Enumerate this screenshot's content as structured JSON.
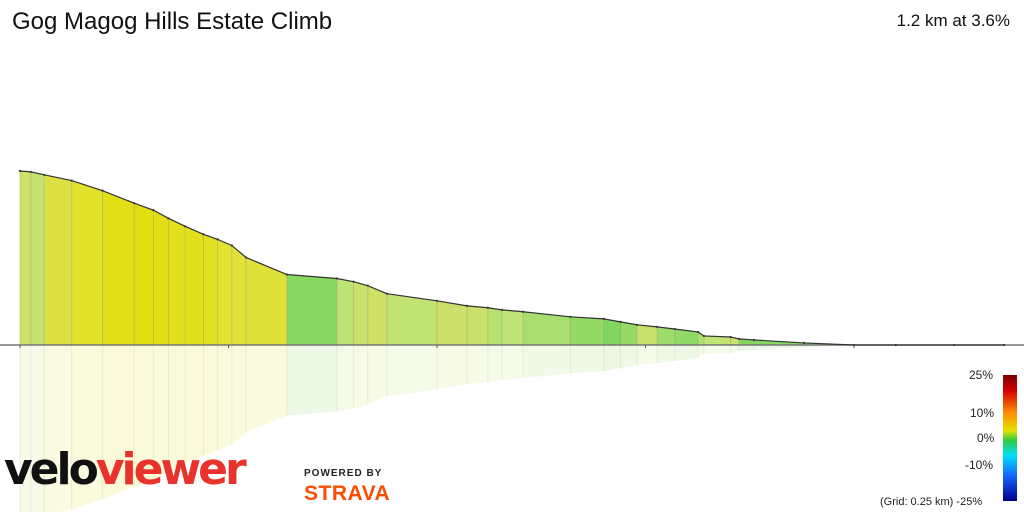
{
  "header": {
    "title": "Gog Magog Hills Estate Climb",
    "summary": "1.2 km at 3.6%"
  },
  "legend": {
    "scale_labels": [
      "25%",
      "10%",
      "0%",
      "-10%",
      "-25%"
    ],
    "grid_note": "(Grid: 0.25 km)",
    "colors": [
      "#7a0000",
      "#d10000",
      "#ff8c00",
      "#e6e000",
      "#2ecc40",
      "#00e0ff",
      "#1565ff",
      "#00008b"
    ]
  },
  "branding": {
    "logo_part1": "velo",
    "logo_part2": "viewer",
    "powered_by": "POWERED BY",
    "strava": "STRAVA"
  },
  "chart_data": {
    "type": "area",
    "title": "Gog Magog Hills Estate Climb",
    "xlabel": "",
    "ylabel": "",
    "x_unit": "km",
    "grid_interval_km": 0.25,
    "distance_km": [
      0,
      0.013,
      0.029,
      0.062,
      0.099,
      0.137,
      0.16,
      0.178,
      0.198,
      0.22,
      0.237,
      0.254,
      0.271,
      0.32,
      0.38,
      0.4,
      0.417,
      0.44,
      0.5,
      0.536,
      0.561,
      0.578,
      0.603,
      0.66,
      0.7,
      0.72,
      0.74,
      0.764,
      0.785,
      0.813,
      0.82,
      0.852,
      0.862,
      0.88,
      0.94,
      1.0,
      1.05,
      1.12,
      1.18
    ],
    "elevation_rel": [
      100,
      99.5,
      97.8,
      94.5,
      88.7,
      81.5,
      77.5,
      72.8,
      68.2,
      63.6,
      60.7,
      57.2,
      50.3,
      40.5,
      38.2,
      36.4,
      34.1,
      29.5,
      25.4,
      22.5,
      21.4,
      20.2,
      19.1,
      16.2,
      15.0,
      13.3,
      11.6,
      10.4,
      9.2,
      7.5,
      5.2,
      4.6,
      3.5,
      2.9,
      1.2,
      0,
      0,
      0,
      0
    ],
    "segment_gradient_pct": [
      3.5,
      2.5,
      5.2,
      6.6,
      8.4,
      9.5,
      8.7,
      8.0,
      7.9,
      7.4,
      6.0,
      5.7,
      5.6,
      0.4,
      1.9,
      3.0,
      3.5,
      2.1,
      3.2,
      3.0,
      1.7,
      2.0,
      1.3,
      0.7,
      0.2,
      0.8,
      2.8,
      1.0,
      0.6,
      1.6,
      2.1,
      3.3,
      0.3,
      0.4,
      0.1,
      0,
      0,
      0
    ],
    "ylim": [
      0,
      100
    ]
  }
}
